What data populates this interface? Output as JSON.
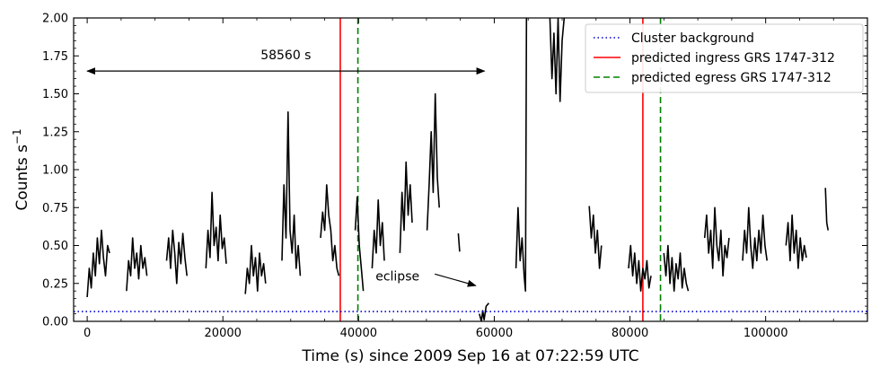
{
  "chart_data": {
    "type": "line",
    "xlabel": "Time (s) since 2009 Sep 16 at 07:22:59 UTC",
    "ylabel": "Counts s",
    "ylabel_sup": "−1",
    "xlim": [
      -2000,
      115000
    ],
    "ylim": [
      0,
      2.0
    ],
    "xticks": [
      0,
      20000,
      40000,
      60000,
      80000,
      100000
    ],
    "xtick_labels": [
      "0",
      "20000",
      "40000",
      "60000",
      "80000",
      "100000"
    ],
    "yticks": [
      0.0,
      0.25,
      0.5,
      0.75,
      1.0,
      1.25,
      1.5,
      1.75,
      2.0
    ],
    "ytick_labels": [
      "0.00",
      "0.25",
      "0.50",
      "0.75",
      "1.00",
      "1.25",
      "1.50",
      "1.75",
      "2.00"
    ],
    "grid": false,
    "legend_position": "top-right",
    "series": [
      {
        "name": "",
        "color": "#000000",
        "style": "solid",
        "segments": [
          {
            "x": [
              0,
              300,
              600,
              900,
              1200,
              1500,
              1800,
              2100,
              2400,
              2700,
              3000,
              3300
            ],
            "y": [
              0.16,
              0.35,
              0.22,
              0.45,
              0.3,
              0.55,
              0.38,
              0.6,
              0.42,
              0.3,
              0.5,
              0.45
            ]
          },
          {
            "x": [
              5800,
              6100,
              6400,
              6700,
              7000,
              7300,
              7600,
              7900,
              8200,
              8500,
              8800
            ],
            "y": [
              0.2,
              0.4,
              0.3,
              0.55,
              0.35,
              0.45,
              0.28,
              0.5,
              0.35,
              0.42,
              0.3
            ]
          },
          {
            "x": [
              11700,
              12000,
              12300,
              12600,
              12900,
              13200,
              13500,
              13800,
              14100,
              14400,
              14700
            ],
            "y": [
              0.4,
              0.55,
              0.35,
              0.6,
              0.45,
              0.25,
              0.52,
              0.38,
              0.58,
              0.42,
              0.3
            ]
          },
          {
            "x": [
              17500,
              17800,
              18100,
              18400,
              18700,
              19000,
              19300,
              19600,
              19900,
              20200,
              20500
            ],
            "y": [
              0.35,
              0.6,
              0.42,
              0.85,
              0.5,
              0.62,
              0.4,
              0.7,
              0.48,
              0.55,
              0.38
            ]
          },
          {
            "x": [
              23300,
              23600,
              23900,
              24200,
              24500,
              24800,
              25100,
              25400,
              25700,
              26000,
              26300
            ],
            "y": [
              0.18,
              0.35,
              0.25,
              0.5,
              0.3,
              0.42,
              0.2,
              0.45,
              0.3,
              0.38,
              0.25
            ]
          },
          {
            "x": [
              28700,
              29000,
              29300,
              29600,
              29900,
              30200,
              30500,
              30800,
              31100,
              31400
            ],
            "y": [
              0.4,
              0.9,
              0.55,
              1.38,
              0.6,
              0.45,
              0.7,
              0.35,
              0.5,
              0.3
            ]
          },
          {
            "x": [
              34400,
              34700,
              35000,
              35300,
              35600,
              35900,
              36200,
              36500,
              36800,
              37100
            ],
            "y": [
              0.55,
              0.72,
              0.6,
              0.9,
              0.7,
              0.6,
              0.4,
              0.5,
              0.35,
              0.3
            ]
          },
          {
            "x": [
              39500,
              39800,
              40100,
              40400,
              40700
            ],
            "y": [
              0.6,
              0.82,
              0.5,
              0.35,
              0.2
            ]
          },
          {
            "x": [
              42000,
              42300,
              42600,
              42900,
              43200,
              43500,
              43800
            ],
            "y": [
              0.35,
              0.6,
              0.45,
              0.8,
              0.5,
              0.65,
              0.4
            ]
          },
          {
            "x": [
              46100,
              46400,
              46700,
              47000,
              47300,
              47600,
              47900
            ],
            "y": [
              0.45,
              0.85,
              0.6,
              1.05,
              0.7,
              0.9,
              0.65
            ]
          },
          {
            "x": [
              50100,
              50400,
              50700,
              51000,
              51300,
              51600,
              51900
            ],
            "y": [
              0.6,
              0.9,
              1.25,
              0.85,
              1.5,
              0.95,
              0.75
            ]
          },
          {
            "x": [
              54700,
              54900
            ],
            "y": [
              0.58,
              0.46
            ]
          },
          {
            "x": [
              57800,
              58100,
              58300,
              58500,
              58800,
              59200
            ],
            "y": [
              0.05,
              0.0,
              0.07,
              0.01,
              0.1,
              0.12
            ]
          },
          {
            "x": [
              63200,
              63500,
              63800,
              64100,
              64400,
              64600,
              64750
            ],
            "y": [
              0.35,
              0.75,
              0.4,
              0.55,
              0.3,
              0.2,
              2.0
            ]
          },
          {
            "x": [
              68200,
              68500,
              68800,
              69100,
              69400,
              69700,
              70000,
              70300
            ],
            "y": [
              2.0,
              1.6,
              1.9,
              1.5,
              2.0,
              1.45,
              1.85,
              2.0
            ]
          },
          {
            "x": [
              74000,
              74300,
              74600,
              74900,
              75200,
              75500,
              75800
            ],
            "y": [
              0.76,
              0.55,
              0.7,
              0.45,
              0.6,
              0.35,
              0.5
            ]
          },
          {
            "x": [
              79800,
              80100,
              80400,
              80700,
              81000,
              81300,
              81600,
              81900,
              82200,
              82500,
              82800,
              83100
            ],
            "y": [
              0.35,
              0.5,
              0.3,
              0.45,
              0.25,
              0.4,
              0.2,
              0.35,
              0.28,
              0.4,
              0.22,
              0.3
            ]
          },
          {
            "x": [
              85000,
              85300,
              85600,
              85900,
              86200,
              86500,
              86800,
              87100,
              87400,
              87700,
              88000,
              88300,
              88600
            ],
            "y": [
              0.45,
              0.3,
              0.5,
              0.25,
              0.42,
              0.2,
              0.38,
              0.28,
              0.45,
              0.22,
              0.35,
              0.25,
              0.2
            ]
          },
          {
            "x": [
              91000,
              91300,
              91600,
              91900,
              92200,
              92500,
              92800,
              93100,
              93400,
              93700,
              94000,
              94300,
              94600
            ],
            "y": [
              0.55,
              0.7,
              0.45,
              0.6,
              0.35,
              0.75,
              0.5,
              0.4,
              0.6,
              0.3,
              0.5,
              0.42,
              0.55
            ]
          },
          {
            "x": [
              96600,
              96900,
              97200,
              97500,
              97800,
              98100,
              98400,
              98700,
              99000,
              99300,
              99600,
              99900,
              100200
            ],
            "y": [
              0.4,
              0.6,
              0.45,
              0.75,
              0.5,
              0.35,
              0.55,
              0.4,
              0.6,
              0.45,
              0.7,
              0.5,
              0.4
            ]
          },
          {
            "x": [
              103000,
              103300,
              103600,
              103900,
              104200,
              104500,
              104800,
              105100,
              105400,
              105700,
              106000
            ],
            "y": [
              0.5,
              0.65,
              0.4,
              0.7,
              0.45,
              0.6,
              0.35,
              0.55,
              0.4,
              0.5,
              0.42
            ]
          },
          {
            "x": [
              108800,
              109000,
              109200
            ],
            "y": [
              0.88,
              0.65,
              0.6
            ]
          }
        ]
      },
      {
        "name": "Cluster background",
        "color": "#0000cc",
        "style": "dotted",
        "y_const": 0.065
      }
    ],
    "vlines": [
      {
        "name": "predicted ingress GRS 1747-312",
        "color": "#ff0000",
        "style": "solid",
        "x": [
          37300,
          81900
        ]
      },
      {
        "name": "predicted egress GRS 1747-312",
        "color": "#008000",
        "style": "dashed",
        "x": [
          39900,
          84500
        ]
      }
    ],
    "annotations": [
      {
        "text": "58560 s",
        "type": "double-arrow",
        "x_start": 0,
        "x_end": 58560,
        "y": 1.65
      },
      {
        "text": "eclipse",
        "type": "arrow",
        "text_x": 42500,
        "text_y": 0.3,
        "point_x": 57400,
        "point_y": 0.2
      }
    ]
  }
}
